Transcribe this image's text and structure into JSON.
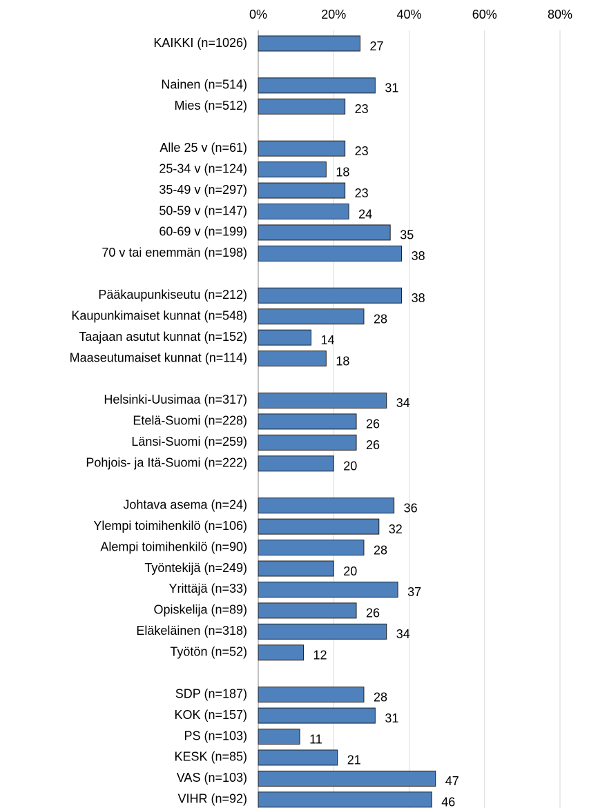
{
  "chart_data": {
    "type": "hbar",
    "categories": [
      "KAIKKI (n=1026)",
      null,
      "Nainen (n=514)",
      "Mies (n=512)",
      null,
      "Alle 25 v (n=61)",
      "25-34 v (n=124)",
      "35-49 v (n=297)",
      "50-59 v (n=147)",
      "60-69 v (n=199)",
      "70 v tai enemmän (n=198)",
      null,
      "Pääkaupunkiseutu (n=212)",
      "Kaupunkimaiset kunnat (n=548)",
      "Taajaan asutut kunnat (n=152)",
      "Maaseutumaiset kunnat (n=114)",
      null,
      "Helsinki-Uusimaa (n=317)",
      "Etelä-Suomi (n=228)",
      "Länsi-Suomi (n=259)",
      "Pohjois- ja Itä-Suomi (n=222)",
      null,
      "Johtava asema (n=24)",
      "Ylempi toimihenkilö (n=106)",
      "Alempi toimihenkilö (n=90)",
      "Työntekijä (n=249)",
      "Yrittäjä (n=33)",
      "Opiskelija (n=89)",
      "Eläkeläinen (n=318)",
      "Työtön (n=52)",
      null,
      "SDP (n=187)",
      "KOK (n=157)",
      "PS (n=103)",
      "KESK (n=85)",
      "VAS (n=103)",
      "VIHR (n=92)"
    ],
    "values": [
      27,
      null,
      31,
      23,
      null,
      23,
      18,
      23,
      24,
      35,
      38,
      null,
      38,
      28,
      14,
      18,
      null,
      34,
      26,
      26,
      20,
      null,
      36,
      32,
      28,
      20,
      37,
      26,
      34,
      12,
      null,
      28,
      31,
      11,
      21,
      47,
      46
    ],
    "color": "#4f81bd",
    "xlim": [
      0,
      80
    ],
    "xticks": [
      {
        "value": 0,
        "label": "0%"
      },
      {
        "value": 20,
        "label": "20%"
      },
      {
        "value": 40,
        "label": "40%"
      },
      {
        "value": 60,
        "label": "60%"
      },
      {
        "value": 80,
        "label": "80%"
      }
    ],
    "grid": true
  }
}
